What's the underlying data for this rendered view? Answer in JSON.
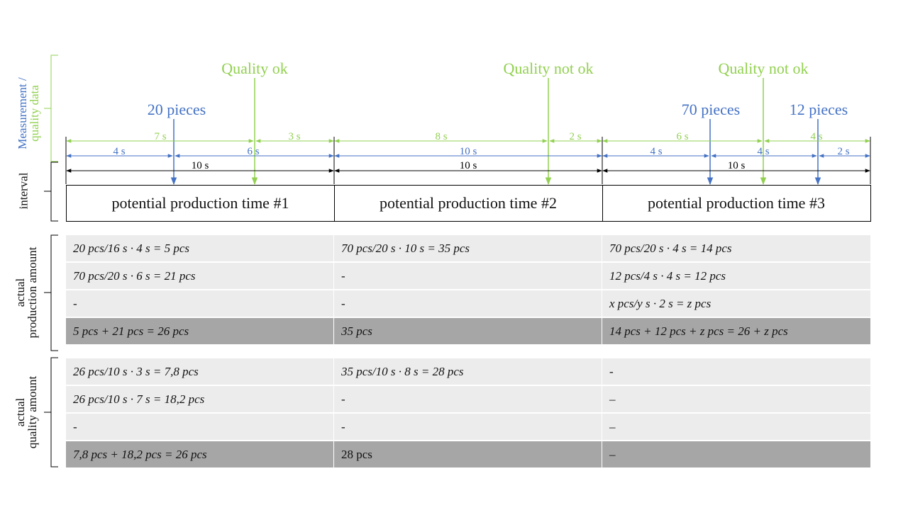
{
  "axis_labels": {
    "measurement": "Measurement /",
    "quality": "quality data",
    "interval": "interval",
    "production_1": "actual",
    "production_2": "production amount",
    "quality_amount_1": "actual",
    "quality_amount_2": "quality amount"
  },
  "events": {
    "quality_1": "Quality ok",
    "quality_2": "Quality not ok",
    "quality_3": "Quality not ok",
    "pieces_1": "20 pieces",
    "pieces_2": "70 pieces",
    "pieces_3": "12 pieces"
  },
  "durations": {
    "g1": "7 s",
    "g2": "3 s",
    "g3": "8 s",
    "g4": "2 s",
    "g5": "6 s",
    "g6": "4 s",
    "b1": "4 s",
    "b2": "6 s",
    "b3": "10 s",
    "b4": "4 s",
    "b5": "4 s",
    "b6": "2 s",
    "k1": "10 s",
    "k2": "10 s",
    "k3": "10 s"
  },
  "intervals": [
    "potential production time #1",
    "potential production time #2",
    "potential production time #3"
  ],
  "production_rows": [
    [
      "20 pcs/16 s · 4 s = 5 pcs",
      "70 pcs/20 s · 10 s = 35 pcs",
      "70 pcs/20 s · 4 s = 14 pcs"
    ],
    [
      "70 pcs/20 s · 6 s = 21 pcs",
      "-",
      "12 pcs/4 s · 4 s = 12 pcs"
    ],
    [
      "-",
      "-",
      "x pcs/y s · 2 s = z pcs"
    ],
    [
      "5 pcs + 21 pcs  = 26 pcs",
      "35 pcs",
      "14 pcs + 12 pcs + z pcs = 26 + z pcs"
    ]
  ],
  "quality_rows": [
    [
      "26 pcs/10 s · 3 s = 7,8 pcs",
      "35 pcs/10 s · 8 s = 28 pcs",
      "-"
    ],
    [
      "26 pcs/10 s · 7 s = 18,2 pcs",
      "-",
      "–"
    ],
    [
      "-",
      "-",
      "–"
    ],
    [
      "7,8 pcs + 18,2 pcs = 26 pcs",
      "28 pcs",
      "–"
    ]
  ],
  "colors": {
    "green": "#92d050",
    "blue": "#4472c4",
    "black": "#000000",
    "row_light": "#ececec",
    "row_dark": "#a6a6a6"
  }
}
